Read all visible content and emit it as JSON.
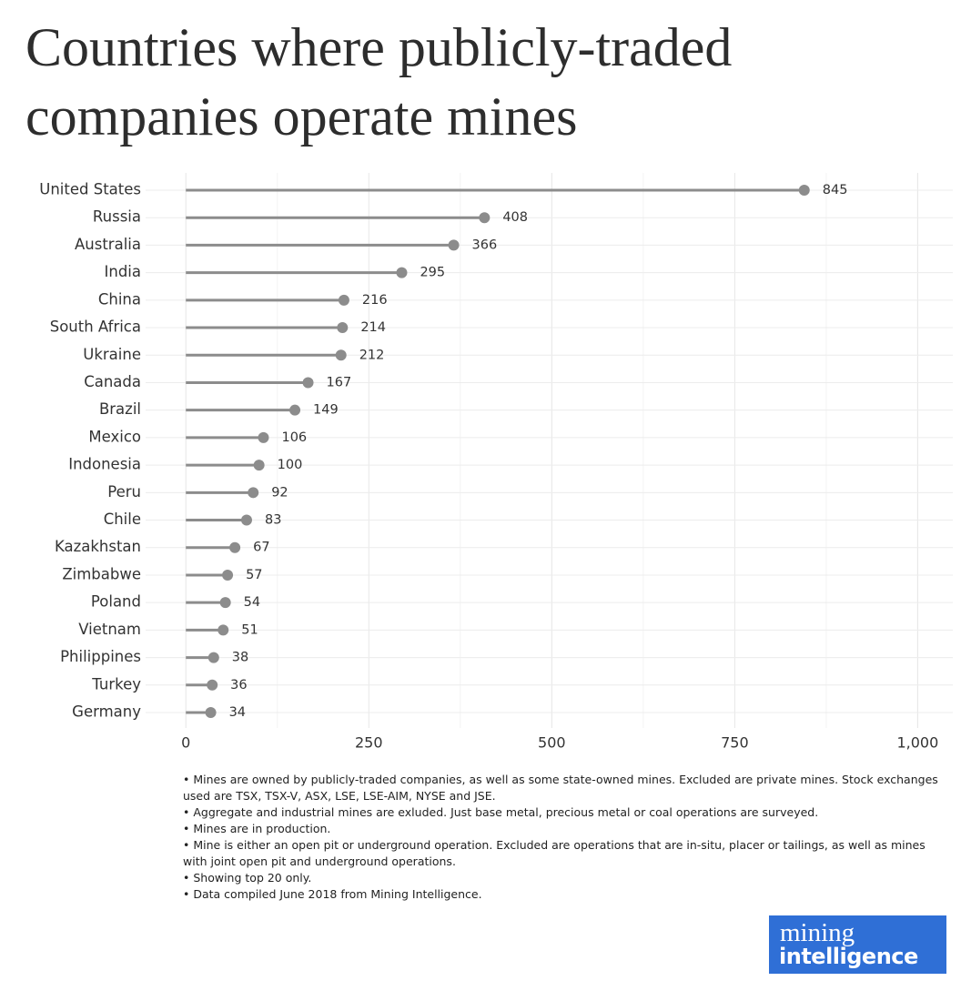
{
  "chart_data": {
    "type": "lollipop",
    "title": "Countries where publicly-traded companies operate mines",
    "categories": [
      "United States",
      "Russia",
      "Australia",
      "India",
      "China",
      "South Africa",
      "Ukraine",
      "Canada",
      "Brazil",
      "Mexico",
      "Indonesia",
      "Peru",
      "Chile",
      "Kazakhstan",
      "Zimbabwe",
      "Poland",
      "Vietnam",
      "Philippines",
      "Turkey",
      "Germany"
    ],
    "values": [
      845,
      408,
      366,
      295,
      216,
      214,
      212,
      167,
      149,
      106,
      100,
      92,
      83,
      67,
      57,
      54,
      51,
      38,
      36,
      34
    ],
    "color": "#8c8c8c",
    "xlim": [
      -55,
      1048
    ],
    "xticks": [
      0,
      250,
      500,
      750,
      {
        "value": 1000,
        "label": "1,000"
      }
    ],
    "minor_xticks": [
      125,
      375,
      625,
      875
    ],
    "grid": true,
    "notes": [
      "Mines are owned by publicly-traded companies, as well as some state-owned mines. Excluded are private mines. Stock exchanges used are TSX, TSX-V, ASX, LSE, LSE-AIM, NYSE and JSE.",
      "Aggregate and industrial mines are exluded. Just base metal, precious metal or coal operations are surveyed.",
      "Mines are in production.",
      "Mine is either an open pit or underground operation. Excluded are operations that are in-situ, placer or tailings, as well as mines with joint open pit and underground operations.",
      "Showing top 20 only.",
      "Data compiled June 2018 from Mining Intelligence."
    ],
    "logo": {
      "line1": "mining",
      "line2": "intelligence"
    }
  }
}
